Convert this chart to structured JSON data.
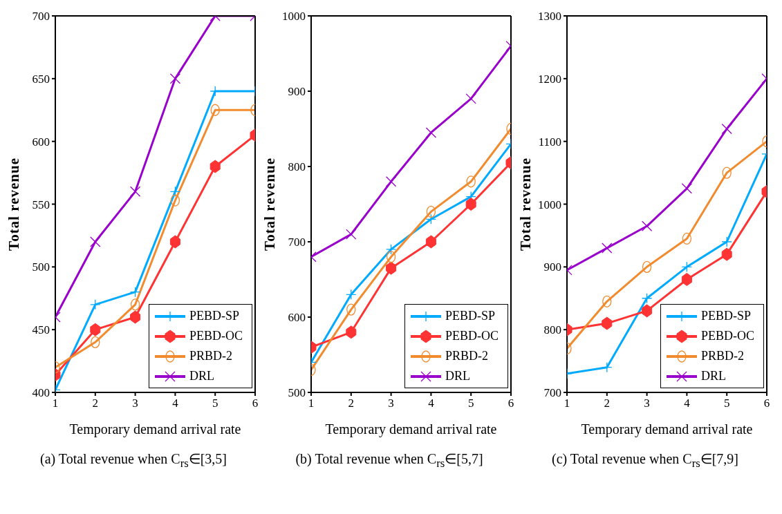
{
  "chart_data": [
    {
      "type": "line",
      "title": "(a) Total revenue when C$_{rs}$∈[3,5]",
      "xlabel": "Temporary demand arrival rate",
      "ylabel": "Total revenue",
      "x": [
        1,
        2,
        3,
        4,
        5,
        6
      ],
      "xlim": [
        1,
        6
      ],
      "xticks": [
        1,
        2,
        3,
        4,
        5,
        6
      ],
      "ylim": [
        400,
        700
      ],
      "yticks": [
        400,
        450,
        500,
        550,
        600,
        650,
        700
      ],
      "grid": false,
      "legend": "bottom right",
      "series": [
        {
          "name": "PEBD-SP",
          "color": "#00aaff",
          "marker": "plus",
          "values": [
            402,
            470,
            480,
            560,
            640,
            640
          ]
        },
        {
          "name": "PEBD-OC",
          "color": "#ff3333",
          "marker": "diamond",
          "values": [
            414,
            450,
            460,
            520,
            580,
            605
          ]
        },
        {
          "name": "PRBD-2",
          "color": "#f28a2e",
          "marker": "circle",
          "values": [
            420,
            440,
            470,
            553,
            625,
            625
          ]
        },
        {
          "name": "DRL",
          "color": "#9900cc",
          "marker": "cross",
          "values": [
            460,
            520,
            560,
            650,
            700,
            700
          ]
        }
      ]
    },
    {
      "type": "line",
      "title": "(b) Total revenue when C$_{rs}$∈[5,7]",
      "xlabel": "Temporary demand arrival rate",
      "ylabel": "Total revenue",
      "x": [
        1,
        2,
        3,
        4,
        5,
        6
      ],
      "xlim": [
        1,
        6
      ],
      "xticks": [
        1,
        2,
        3,
        4,
        5,
        6
      ],
      "ylim": [
        500,
        1000
      ],
      "yticks": [
        500,
        600,
        700,
        800,
        900,
        1000
      ],
      "grid": false,
      "legend": "bottom right",
      "series": [
        {
          "name": "PEBD-SP",
          "color": "#00aaff",
          "marker": "plus",
          "values": [
            540,
            630,
            690,
            730,
            760,
            830
          ]
        },
        {
          "name": "PEBD-OC",
          "color": "#ff3333",
          "marker": "diamond",
          "values": [
            560,
            580,
            665,
            700,
            750,
            805
          ]
        },
        {
          "name": "PRBD-2",
          "color": "#f28a2e",
          "marker": "circle",
          "values": [
            530,
            610,
            680,
            740,
            780,
            850
          ]
        },
        {
          "name": "DRL",
          "color": "#9900cc",
          "marker": "cross",
          "values": [
            680,
            710,
            780,
            845,
            890,
            960
          ]
        }
      ]
    },
    {
      "type": "line",
      "title": "(c) Total revenue when C$_{rs}$∈[7,9]",
      "xlabel": "Temporary demand arrival rate",
      "ylabel": "Total revenue",
      "x": [
        1,
        2,
        3,
        4,
        5,
        6
      ],
      "xlim": [
        1,
        6
      ],
      "xticks": [
        1,
        2,
        3,
        4,
        5,
        6
      ],
      "ylim": [
        700,
        1300
      ],
      "yticks": [
        700,
        800,
        900,
        1000,
        1100,
        1200,
        1300
      ],
      "grid": false,
      "legend": "bottom right",
      "series": [
        {
          "name": "PEBD-SP",
          "color": "#00aaff",
          "marker": "plus",
          "values": [
            730,
            740,
            850,
            900,
            940,
            1080
          ]
        },
        {
          "name": "PEBD-OC",
          "color": "#ff3333",
          "marker": "diamond",
          "values": [
            800,
            810,
            830,
            880,
            920,
            1020
          ]
        },
        {
          "name": "PRBD-2",
          "color": "#f28a2e",
          "marker": "circle",
          "values": [
            770,
            845,
            900,
            945,
            1050,
            1100
          ]
        },
        {
          "name": "DRL",
          "color": "#9900cc",
          "marker": "cross",
          "values": [
            895,
            930,
            965,
            1025,
            1120,
            1200
          ]
        }
      ]
    }
  ]
}
